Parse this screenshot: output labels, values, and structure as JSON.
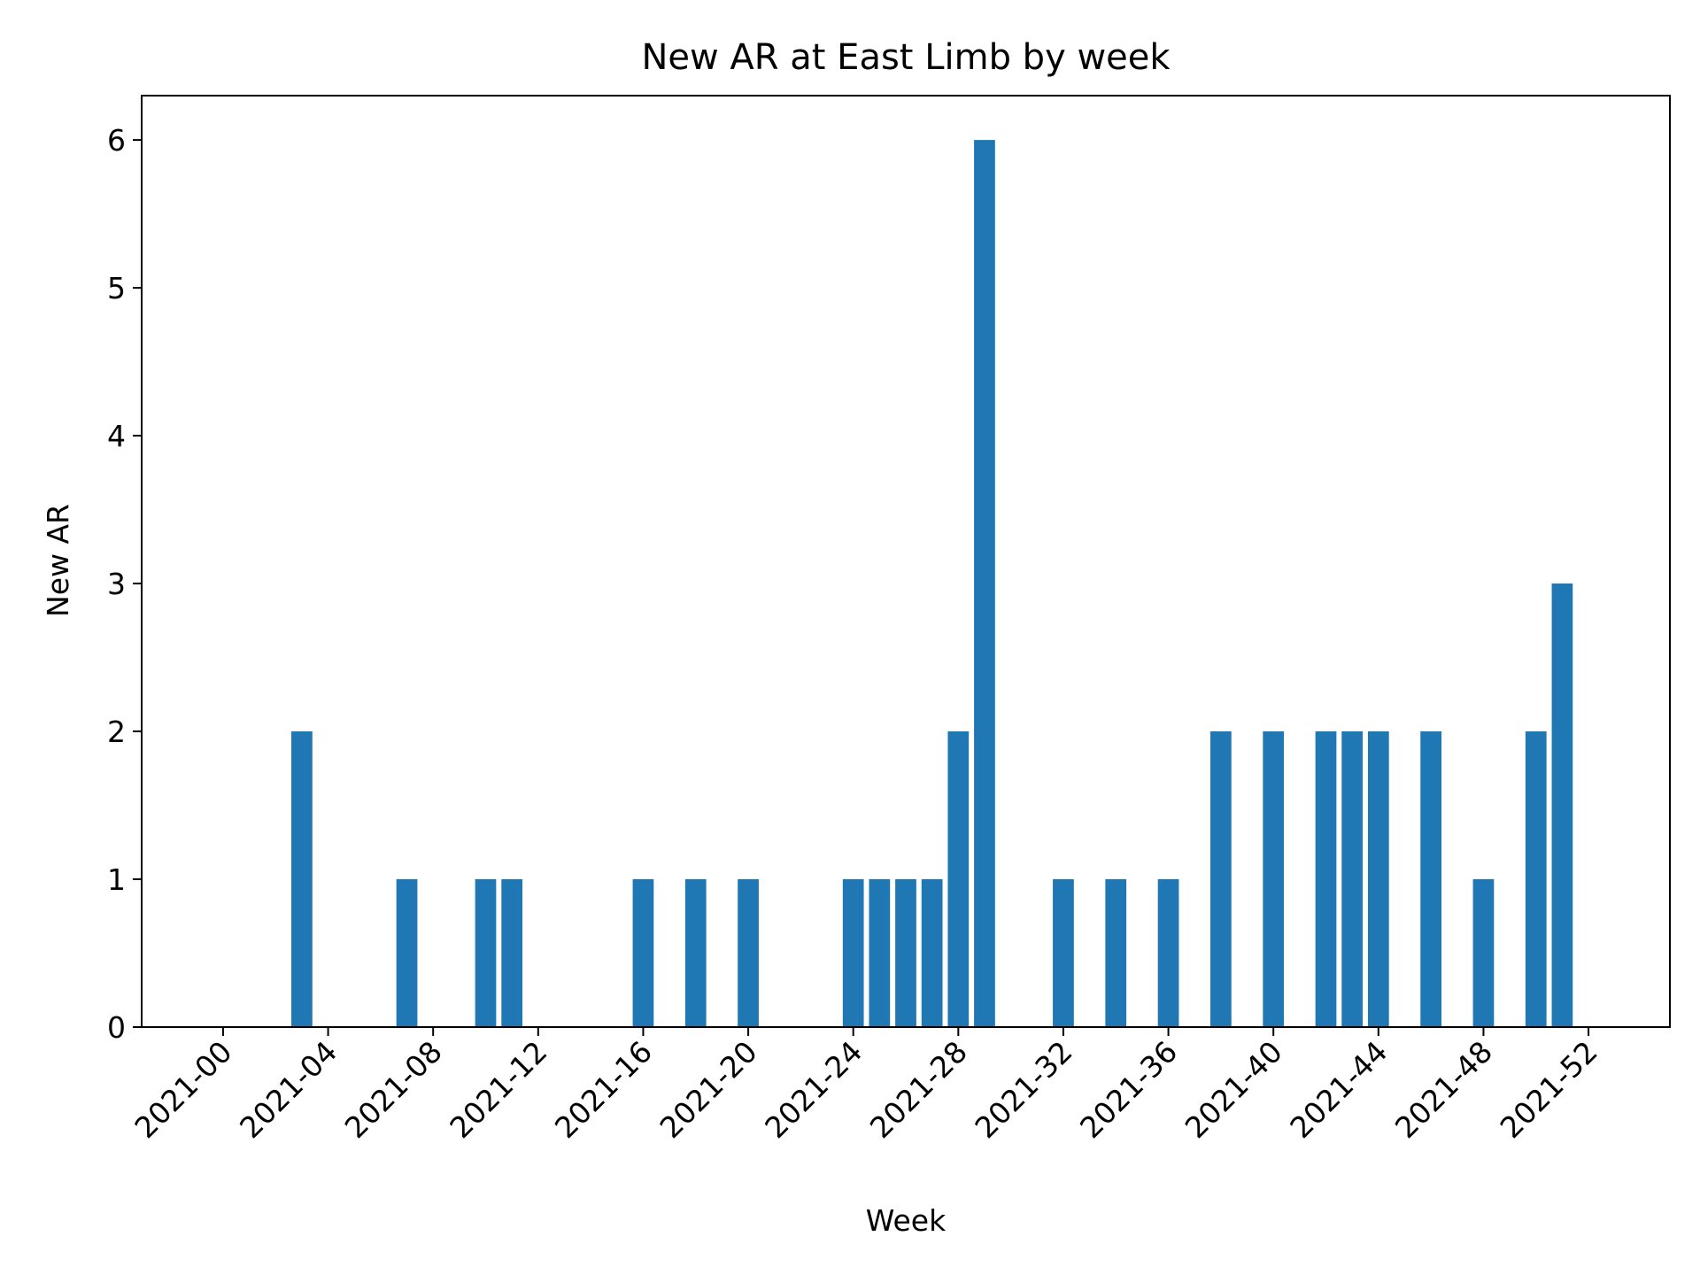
{
  "chart_data": {
    "type": "bar",
    "title": "New AR at East Limb by week",
    "xlabel": "Week",
    "ylabel": "New AR",
    "x_tick_labels": [
      "2021-00",
      "2021-04",
      "2021-08",
      "2021-12",
      "2021-16",
      "2021-20",
      "2021-24",
      "2021-28",
      "2021-32",
      "2021-36",
      "2021-40",
      "2021-44",
      "2021-48",
      "2021-52"
    ],
    "x_tick_weeks": [
      0,
      4,
      8,
      12,
      16,
      20,
      24,
      28,
      32,
      36,
      40,
      44,
      48,
      52
    ],
    "y_ticks": [
      0,
      1,
      2,
      3,
      4,
      5,
      6
    ],
    "ylim": [
      0,
      6.3
    ],
    "xlim": [
      -3.1,
      55.1
    ],
    "grid": false,
    "color": "#1f77b4",
    "weeks": [
      3,
      7,
      10,
      11,
      16,
      18,
      20,
      24,
      25,
      26,
      27,
      28,
      29,
      32,
      34,
      36,
      38,
      40,
      42,
      43,
      44,
      46,
      48,
      50,
      51
    ],
    "values": [
      2,
      1,
      1,
      1,
      1,
      1,
      1,
      1,
      1,
      1,
      1,
      2,
      6,
      1,
      1,
      1,
      2,
      2,
      2,
      2,
      2,
      2,
      1,
      2,
      3
    ]
  }
}
